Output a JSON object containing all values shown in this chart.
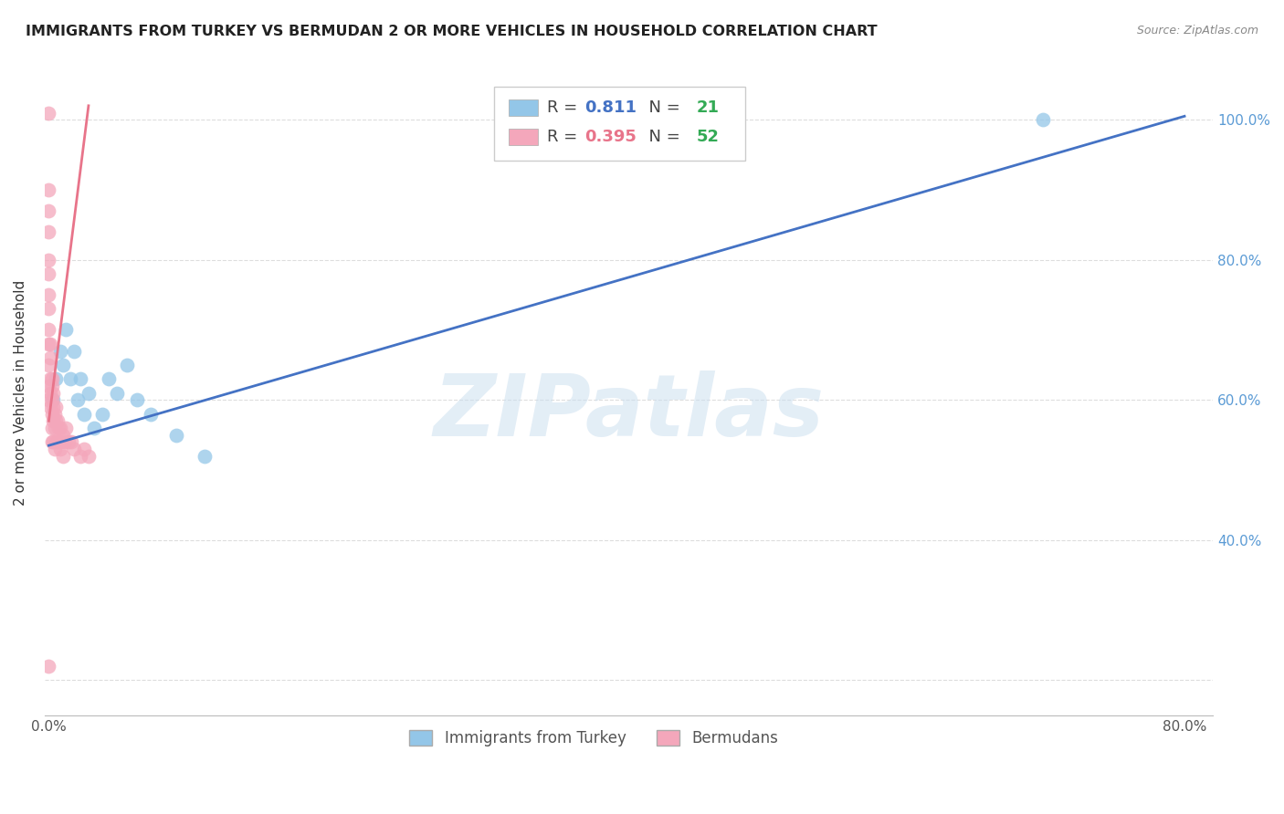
{
  "title": "IMMIGRANTS FROM TURKEY VS BERMUDAN 2 OR MORE VEHICLES IN HOUSEHOLD CORRELATION CHART",
  "source": "Source: ZipAtlas.com",
  "ylabel_label": "2 or more Vehicles in Household",
  "legend_turkey": "Immigrants from Turkey",
  "legend_bermuda": "Bermudans",
  "R_turkey": "0.811",
  "N_turkey": "21",
  "R_bermuda": "0.395",
  "N_bermuda": "52",
  "color_turkey": "#93c6e8",
  "color_bermuda": "#f4a7bb",
  "color_turkey_line": "#4472c4",
  "color_bermuda_line": "#e8748a",
  "color_R_value": "#4472c4",
  "color_R_bermuda": "#e8748a",
  "color_N_value": "#33aa55",
  "watermark_text": "ZIPatlas",
  "xlim": [
    -0.003,
    0.82
  ],
  "ylim": [
    0.15,
    1.07
  ],
  "x_tick_positions": [
    0.0,
    0.1,
    0.2,
    0.3,
    0.4,
    0.5,
    0.6,
    0.7,
    0.8
  ],
  "x_tick_labels": [
    "0.0%",
    "",
    "",
    "",
    "",
    "",
    "",
    "",
    "80.0%"
  ],
  "y_tick_positions": [
    0.2,
    0.4,
    0.6,
    0.8,
    1.0
  ],
  "y_tick_labels_right": [
    "",
    "40.0%",
    "60.0%",
    "80.0%",
    "100.0%"
  ],
  "turkey_scatter_x": [
    0.003,
    0.005,
    0.008,
    0.01,
    0.012,
    0.015,
    0.018,
    0.02,
    0.022,
    0.025,
    0.028,
    0.032,
    0.038,
    0.042,
    0.048,
    0.055,
    0.062,
    0.072,
    0.09,
    0.11,
    0.7
  ],
  "turkey_scatter_y": [
    0.6,
    0.63,
    0.67,
    0.65,
    0.7,
    0.63,
    0.67,
    0.6,
    0.63,
    0.58,
    0.61,
    0.56,
    0.58,
    0.63,
    0.61,
    0.65,
    0.6,
    0.58,
    0.55,
    0.52,
    1.0
  ],
  "bermuda_scatter_x": [
    0.0,
    0.0,
    0.0,
    0.0,
    0.0,
    0.0,
    0.0,
    0.0,
    0.0,
    0.0,
    0.0,
    0.0,
    0.0,
    0.001,
    0.001,
    0.001,
    0.001,
    0.001,
    0.002,
    0.002,
    0.002,
    0.002,
    0.002,
    0.002,
    0.003,
    0.003,
    0.003,
    0.003,
    0.004,
    0.004,
    0.004,
    0.005,
    0.005,
    0.005,
    0.006,
    0.006,
    0.007,
    0.007,
    0.008,
    0.008,
    0.009,
    0.01,
    0.01,
    0.011,
    0.012,
    0.014,
    0.016,
    0.018,
    0.022,
    0.025,
    0.028,
    0.0
  ],
  "bermuda_scatter_y": [
    1.01,
    0.9,
    0.87,
    0.84,
    0.8,
    0.78,
    0.75,
    0.73,
    0.7,
    0.68,
    0.65,
    0.62,
    0.6,
    0.68,
    0.66,
    0.63,
    0.61,
    0.59,
    0.63,
    0.62,
    0.6,
    0.58,
    0.56,
    0.54,
    0.61,
    0.59,
    0.57,
    0.54,
    0.58,
    0.56,
    0.53,
    0.59,
    0.57,
    0.54,
    0.57,
    0.54,
    0.56,
    0.54,
    0.56,
    0.53,
    0.54,
    0.55,
    0.52,
    0.54,
    0.56,
    0.54,
    0.54,
    0.53,
    0.52,
    0.53,
    0.52,
    0.22
  ],
  "turkey_line_x": [
    0.0,
    0.8
  ],
  "turkey_line_y": [
    0.535,
    1.005
  ],
  "bermuda_line_x": [
    0.0,
    0.028
  ],
  "bermuda_line_y": [
    0.57,
    1.02
  ],
  "grid_color": "#dddddd",
  "background_color": "#ffffff"
}
